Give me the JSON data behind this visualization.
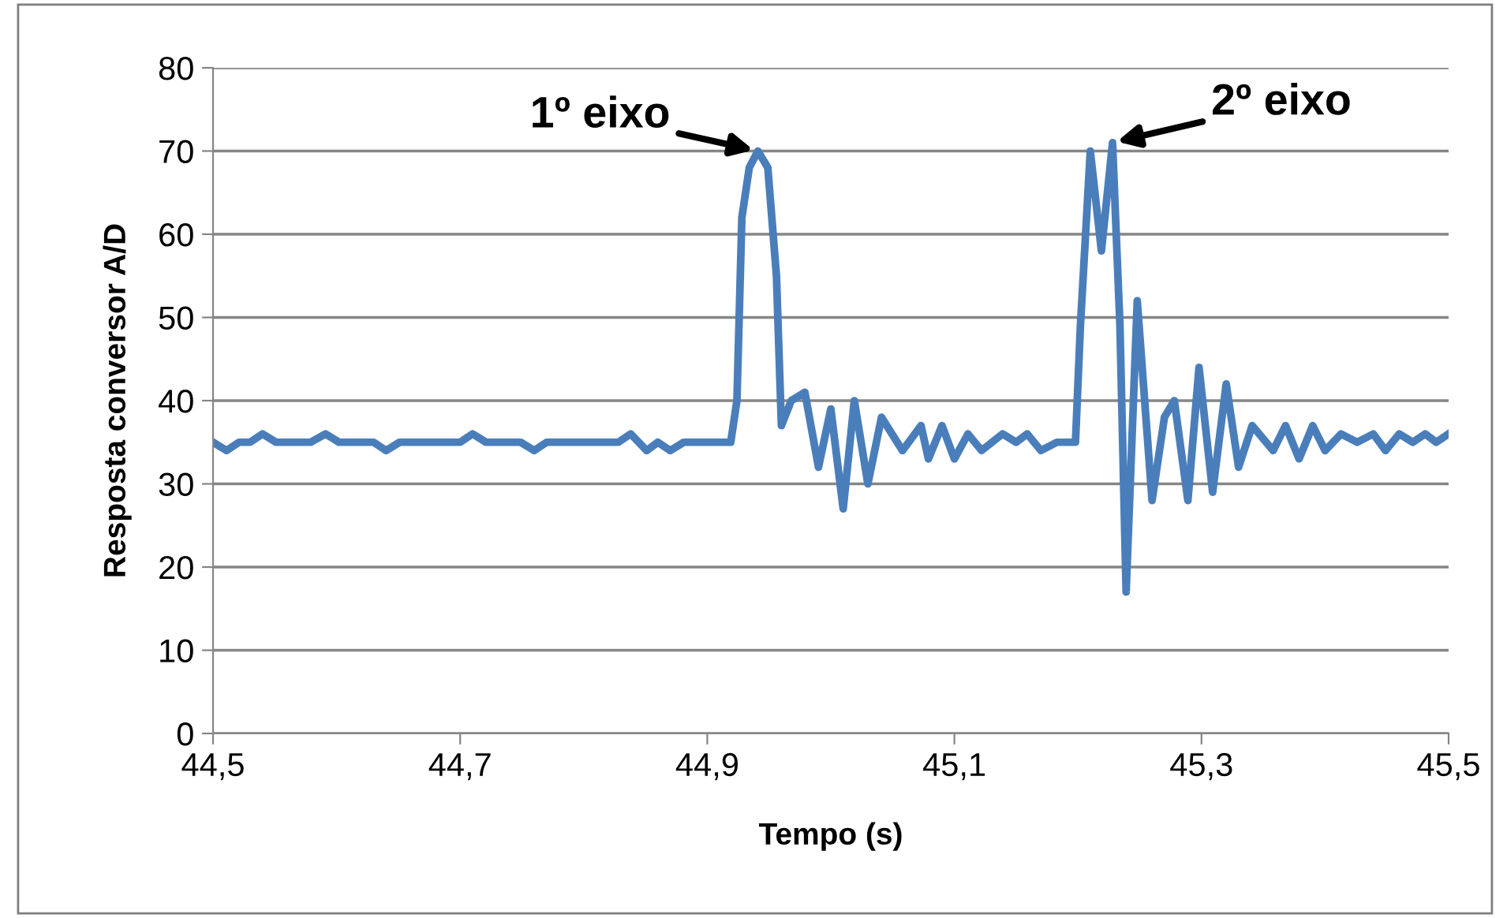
{
  "chart_data": {
    "type": "line",
    "xlabel": "Tempo (s)",
    "ylabel": "Resposta conversor A/D",
    "series": [
      {
        "color": "#4a7ebb",
        "x": [
          44.5,
          44.511,
          44.521,
          44.53,
          44.54,
          44.551,
          44.579,
          44.591,
          44.602,
          44.63,
          44.64,
          44.651,
          44.7,
          44.71,
          44.721,
          44.749,
          44.76,
          44.77,
          44.828,
          44.838,
          44.851,
          44.86,
          44.87,
          44.881,
          44.913,
          44.919,
          44.924,
          44.928,
          44.934,
          44.941,
          44.949,
          44.956,
          44.96,
          44.968,
          44.979,
          44.99,
          45.0,
          45.01,
          45.019,
          45.03,
          45.041,
          45.058,
          45.073,
          45.079,
          45.09,
          45.1,
          45.111,
          45.122,
          45.139,
          45.15,
          45.159,
          45.17,
          45.183,
          45.198,
          45.202,
          45.21,
          45.219,
          45.228,
          45.234,
          45.239,
          45.248,
          45.26,
          45.27,
          45.278,
          45.289,
          45.298,
          45.309,
          45.32,
          45.33,
          45.341,
          45.358,
          45.368,
          45.379,
          45.39,
          45.4,
          45.413,
          45.426,
          45.439,
          45.449,
          45.46,
          45.471,
          45.481,
          45.49,
          45.5
        ],
        "values": [
          35,
          34,
          35,
          35,
          36,
          35,
          35,
          36,
          35,
          35,
          34,
          35,
          35,
          36,
          35,
          35,
          34,
          35,
          35,
          36,
          34,
          35,
          34,
          35,
          35,
          35,
          40,
          62,
          68,
          70,
          68,
          55,
          37,
          40,
          41,
          32,
          39,
          27,
          40,
          30,
          38,
          34,
          37,
          33,
          37,
          33,
          36,
          34,
          36,
          35,
          36,
          34,
          35,
          35,
          49,
          70,
          58,
          71,
          49,
          17,
          52,
          28,
          38,
          40,
          28,
          44,
          29,
          42,
          32,
          37,
          34,
          37,
          33,
          37,
          34,
          36,
          35,
          36,
          34,
          36,
          35,
          36,
          35,
          36
        ]
      }
    ],
    "xlim": [
      44.5,
      45.5
    ],
    "xticks": [
      {
        "value": 44.5,
        "label": "44,5"
      },
      {
        "value": 44.7,
        "label": "44,7"
      },
      {
        "value": 44.9,
        "label": "44,9"
      },
      {
        "value": 45.1,
        "label": "45,1"
      },
      {
        "value": 45.3,
        "label": "45,3"
      },
      {
        "value": 45.5,
        "label": "45,5"
      }
    ],
    "ylim": [
      0,
      80
    ],
    "yticks": [
      0,
      10,
      20,
      30,
      40,
      50,
      60,
      70,
      80
    ],
    "grid": "y",
    "marker": "none",
    "line_style": "solid",
    "legend": false,
    "annotations": [
      {
        "text": "1º eixo",
        "x": 44.941,
        "y": 70
      },
      {
        "text": "2º eixo",
        "x": 45.228,
        "y": 71
      }
    ]
  }
}
